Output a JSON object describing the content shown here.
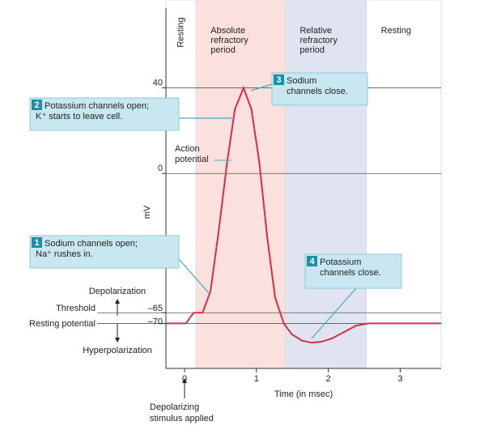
{
  "chart_data": {
    "type": "line",
    "ylabel": "mV",
    "xlabel": "Time (in msec)",
    "xlim": [
      -0.26,
      3.57
    ],
    "xticks": [
      0,
      1,
      2,
      3
    ],
    "ylim": [
      -91,
      81
    ],
    "yticks": [
      40,
      0,
      {
        "value": -65,
        "label": "–65"
      },
      {
        "value": -70,
        "label": "–70"
      }
    ],
    "grid": true,
    "series": [
      {
        "name": "Action potential",
        "color": "#d62d4a",
        "x": [
          -0.26,
          0.02,
          0.08,
          0.13,
          0.25,
          0.36,
          0.47,
          0.59,
          0.7,
          0.82,
          0.93,
          1.04,
          1.15,
          1.26,
          1.38,
          1.49,
          1.63,
          1.77,
          1.91,
          2.05,
          2.22,
          2.39,
          2.56,
          3.57
        ],
        "values": [
          -70,
          -70,
          -67,
          -65,
          -65,
          -55,
          -28,
          5,
          30,
          40,
          30,
          5,
          -30,
          -58,
          -70,
          -75,
          -78,
          -79,
          -78.5,
          -77,
          -74,
          -71,
          -70,
          -70
        ]
      }
    ],
    "regions": [
      {
        "label": [
          "Resting"
        ],
        "start": -0.26,
        "end": 0.16,
        "color": "#ffffff"
      },
      {
        "label": [
          "Absolute",
          "refractory",
          "period"
        ],
        "start": 0.16,
        "end": 1.4,
        "color": "#fbe1dd"
      },
      {
        "label": [
          "Relative",
          "refractory",
          "period"
        ],
        "start": 1.4,
        "end": 2.53,
        "color": "#dfe4f0"
      },
      {
        "label": [
          "Resting"
        ],
        "start": 2.53,
        "end": 3.57,
        "color": "#ffffff"
      }
    ],
    "callouts": [
      {
        "number": "1",
        "lines": [
          "Sodium channels open;",
          "Na⁺ rushes in."
        ]
      },
      {
        "number": "2",
        "lines": [
          "Potassium channels open;",
          "K⁺ starts to leave cell."
        ]
      },
      {
        "number": "3",
        "lines": [
          "Sodium",
          "channels close."
        ]
      },
      {
        "number": "4",
        "lines": [
          "Potassium",
          "channels close."
        ]
      }
    ],
    "labels": {
      "action_potential": [
        "Action",
        "potential"
      ],
      "depolarization": "Depolarization",
      "threshold": "Threshold",
      "resting_potential": "Resting potential",
      "hyperpolarization": "Hyperpolarization",
      "stimulus": [
        "Depolarizing",
        "stimulus applied"
      ]
    }
  }
}
